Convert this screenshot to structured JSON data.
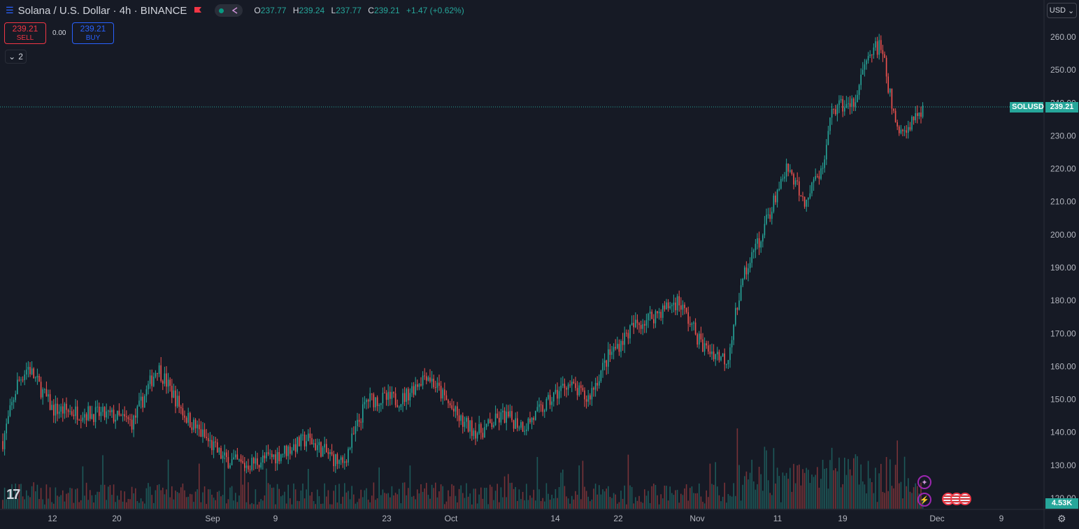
{
  "header": {
    "title": "Solana / U.S. Dollar · 4h · BINANCE",
    "ohlc": {
      "o_label": "O",
      "o": "237.77",
      "h_label": "H",
      "h": "239.24",
      "l_label": "L",
      "l": "237.77",
      "c_label": "C",
      "c": "239.21",
      "change": "+1.47 (+0.62%)"
    }
  },
  "trade": {
    "sell_price": "239.21",
    "sell_label": "SELL",
    "spread": "0.00",
    "buy_price": "239.21",
    "buy_label": "BUY"
  },
  "indicators_count": "2",
  "currency": "USD",
  "price_tag": {
    "symbol": "SOLUSD",
    "price": "239.21"
  },
  "volume_tag": "4.53K",
  "colors": {
    "up": "#26a69a",
    "down": "#ef5350",
    "background": "#161a25",
    "accent": "#2962ff"
  },
  "icons": [
    "menu-icon",
    "flag-icon",
    "chevron-down-icon",
    "sparkle-icon",
    "lightning-icon",
    "us-flag-icon",
    "settings-icon"
  ],
  "chart_data": {
    "type": "candlestick",
    "symbol": "SOLUSD",
    "timeframe": "4h",
    "ylim": [
      120,
      265
    ],
    "y_ticks": [
      "260.00",
      "250.00",
      "240.00",
      "230.00",
      "220.00",
      "210.00",
      "200.00",
      "190.00",
      "180.00",
      "170.00",
      "160.00",
      "150.00",
      "140.00",
      "130.00",
      "120.00"
    ],
    "x_ticks": [
      "12",
      "20",
      "Sep",
      "9",
      "23",
      "Oct",
      "14",
      "22",
      "Nov",
      "11",
      "19",
      "Dec",
      "9"
    ],
    "last_price": 239.21,
    "closes_approx": [
      {
        "date": "Aug 9",
        "close": 134
      },
      {
        "date": "Aug 12",
        "close": 155
      },
      {
        "date": "Aug 14",
        "close": 160
      },
      {
        "date": "Aug 16",
        "close": 147
      },
      {
        "date": "Aug 20",
        "close": 145
      },
      {
        "date": "Aug 23",
        "close": 143
      },
      {
        "date": "Aug 26",
        "close": 160
      },
      {
        "date": "Aug 28",
        "close": 145
      },
      {
        "date": "Sep 2",
        "close": 132
      },
      {
        "date": "Sep 6",
        "close": 130
      },
      {
        "date": "Sep 9",
        "close": 133
      },
      {
        "date": "Sep 13",
        "close": 138
      },
      {
        "date": "Sep 19",
        "close": 130
      },
      {
        "date": "Sep 22",
        "close": 150
      },
      {
        "date": "Sep 26",
        "close": 150
      },
      {
        "date": "Sep 29",
        "close": 158
      },
      {
        "date": "Oct 2",
        "close": 143
      },
      {
        "date": "Oct 5",
        "close": 140
      },
      {
        "date": "Oct 9",
        "close": 145
      },
      {
        "date": "Oct 12",
        "close": 142
      },
      {
        "date": "Oct 14",
        "close": 148
      },
      {
        "date": "Oct 17",
        "close": 155
      },
      {
        "date": "Oct 20",
        "close": 150
      },
      {
        "date": "Oct 22",
        "close": 163
      },
      {
        "date": "Oct 25",
        "close": 172
      },
      {
        "date": "Oct 27",
        "close": 175
      },
      {
        "date": "Oct 29",
        "close": 180
      },
      {
        "date": "Nov 1",
        "close": 166
      },
      {
        "date": "Nov 4",
        "close": 162
      },
      {
        "date": "Nov 6",
        "close": 186
      },
      {
        "date": "Nov 9",
        "close": 200
      },
      {
        "date": "Nov 11",
        "close": 212
      },
      {
        "date": "Nov 13",
        "close": 220
      },
      {
        "date": "Nov 15",
        "close": 210
      },
      {
        "date": "Nov 17",
        "close": 222
      },
      {
        "date": "Nov 18",
        "close": 238
      },
      {
        "date": "Nov 20",
        "close": 240
      },
      {
        "date": "Nov 21",
        "close": 256
      },
      {
        "date": "Nov 23",
        "close": 257
      },
      {
        "date": "Nov 25",
        "close": 234
      },
      {
        "date": "Nov 26",
        "close": 230
      },
      {
        "date": "Nov 28",
        "close": 239.21
      }
    ]
  }
}
